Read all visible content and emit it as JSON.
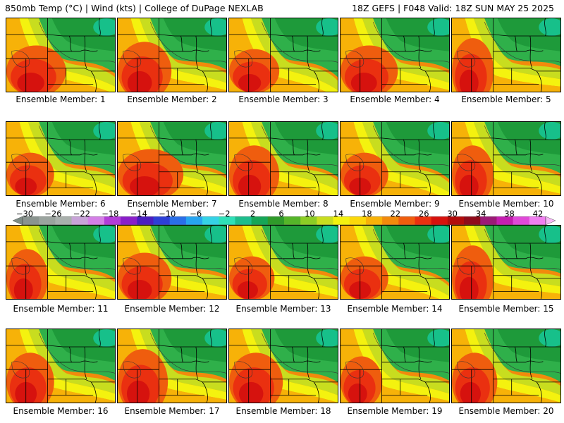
{
  "header": {
    "left": "850mb Temp (°C) | Wind (kts) | College of DuPage NEXLAB",
    "right": "18Z GEFS | F048 Valid: 18Z SUN MAY 25 2025"
  },
  "members": [
    {
      "label": "Ensemble Member: 1"
    },
    {
      "label": "Ensemble Member: 2"
    },
    {
      "label": "Ensemble Member: 3"
    },
    {
      "label": "Ensemble Member: 4"
    },
    {
      "label": "Ensemble Member: 5"
    },
    {
      "label": "Ensemble Member: 6"
    },
    {
      "label": "Ensemble Member: 7"
    },
    {
      "label": "Ensemble Member: 8"
    },
    {
      "label": "Ensemble Member: 9"
    },
    {
      "label": "Ensemble Member: 10"
    },
    {
      "label": "Ensemble Member: 11"
    },
    {
      "label": "Ensemble Member: 12"
    },
    {
      "label": "Ensemble Member: 13"
    },
    {
      "label": "Ensemble Member: 14"
    },
    {
      "label": "Ensemble Member: 15"
    },
    {
      "label": "Ensemble Member: 16"
    },
    {
      "label": "Ensemble Member: 17"
    },
    {
      "label": "Ensemble Member: 18"
    },
    {
      "label": "Ensemble Member: 19"
    },
    {
      "label": "Ensemble Member: 20"
    }
  ],
  "colorbar": {
    "labels": [
      "−30",
      "−26",
      "−22",
      "−18",
      "−14",
      "−10",
      "−6",
      "−2",
      "2",
      "6",
      "10",
      "14",
      "18",
      "22",
      "26",
      "30",
      "34",
      "38",
      "42"
    ],
    "colors": [
      "#7d8c85",
      "#8a948f",
      "#9aa39e",
      "#a9b0ac",
      "#c8a3d8",
      "#d47fe6",
      "#b23cd8",
      "#8a1fc9",
      "#4a1ec0",
      "#2d3fd6",
      "#2a6fe8",
      "#27a4f0",
      "#35d2e6",
      "#2fe0b8",
      "#1ebd8c",
      "#16a657",
      "#2f9a2a",
      "#55b529",
      "#8ccd25",
      "#c8dd1f",
      "#f4f20f",
      "#fbd80a",
      "#f7b208",
      "#f28a0c",
      "#ef5d0e",
      "#ea3010",
      "#d6120e",
      "#b20c0c",
      "#8f0b1b",
      "#9b1a76",
      "#c41eb0",
      "#e049d8",
      "#f07ff0",
      "#f7b7f7"
    ]
  },
  "palette": {
    "green_dark": "#1e9a3a",
    "green": "#2fb04a",
    "teal": "#17c08a",
    "lime": "#8ccd25",
    "yellow_green": "#c8dd1f",
    "yellow": "#f4f20f",
    "light_orange": "#fbd80a",
    "orange": "#f7b208",
    "orange_red": "#f28a0c",
    "red_orange": "#ef5d0e",
    "red": "#ea3010",
    "dark_red": "#d6120e"
  }
}
